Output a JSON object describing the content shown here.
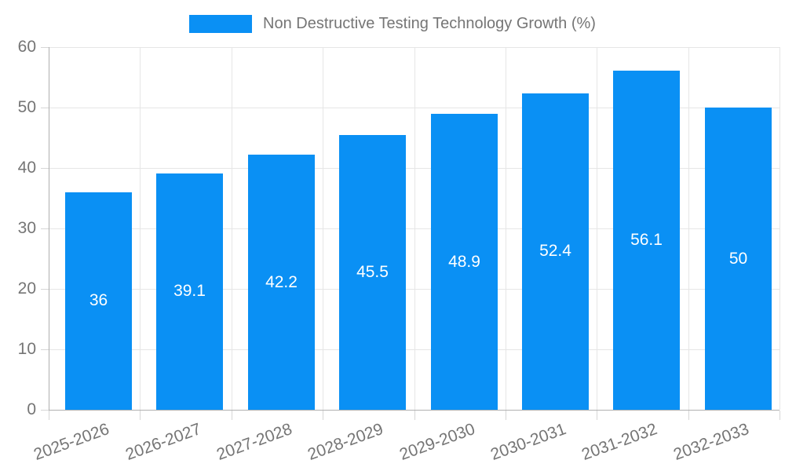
{
  "legend": {
    "label": "Non Destructive Testing Technology Growth (%)"
  },
  "chart_data": {
    "type": "bar",
    "title": "Non Destructive Testing Technology Growth (%)",
    "categories": [
      "2025-2026",
      "2026-2027",
      "2027-2028",
      "2028-2029",
      "2029-2030",
      "2030-2031",
      "2031-2032",
      "2032-2033"
    ],
    "values": [
      36,
      39.1,
      42.2,
      45.5,
      48.9,
      52.4,
      56.1,
      50
    ],
    "xlabel": "",
    "ylabel": "",
    "ylim": [
      0,
      60
    ],
    "yticks": [
      0,
      10,
      20,
      30,
      40,
      50,
      60
    ],
    "grid": true,
    "legend_position": "top-center",
    "colors": {
      "bar": "#0a90f4",
      "label_text": "#757575",
      "value_text": "#ffffff",
      "gridline": "#e6e6e6",
      "axis_line": "#b0b0b0",
      "tick_mark": "#d6d6d6",
      "background": "#ffffff"
    }
  }
}
